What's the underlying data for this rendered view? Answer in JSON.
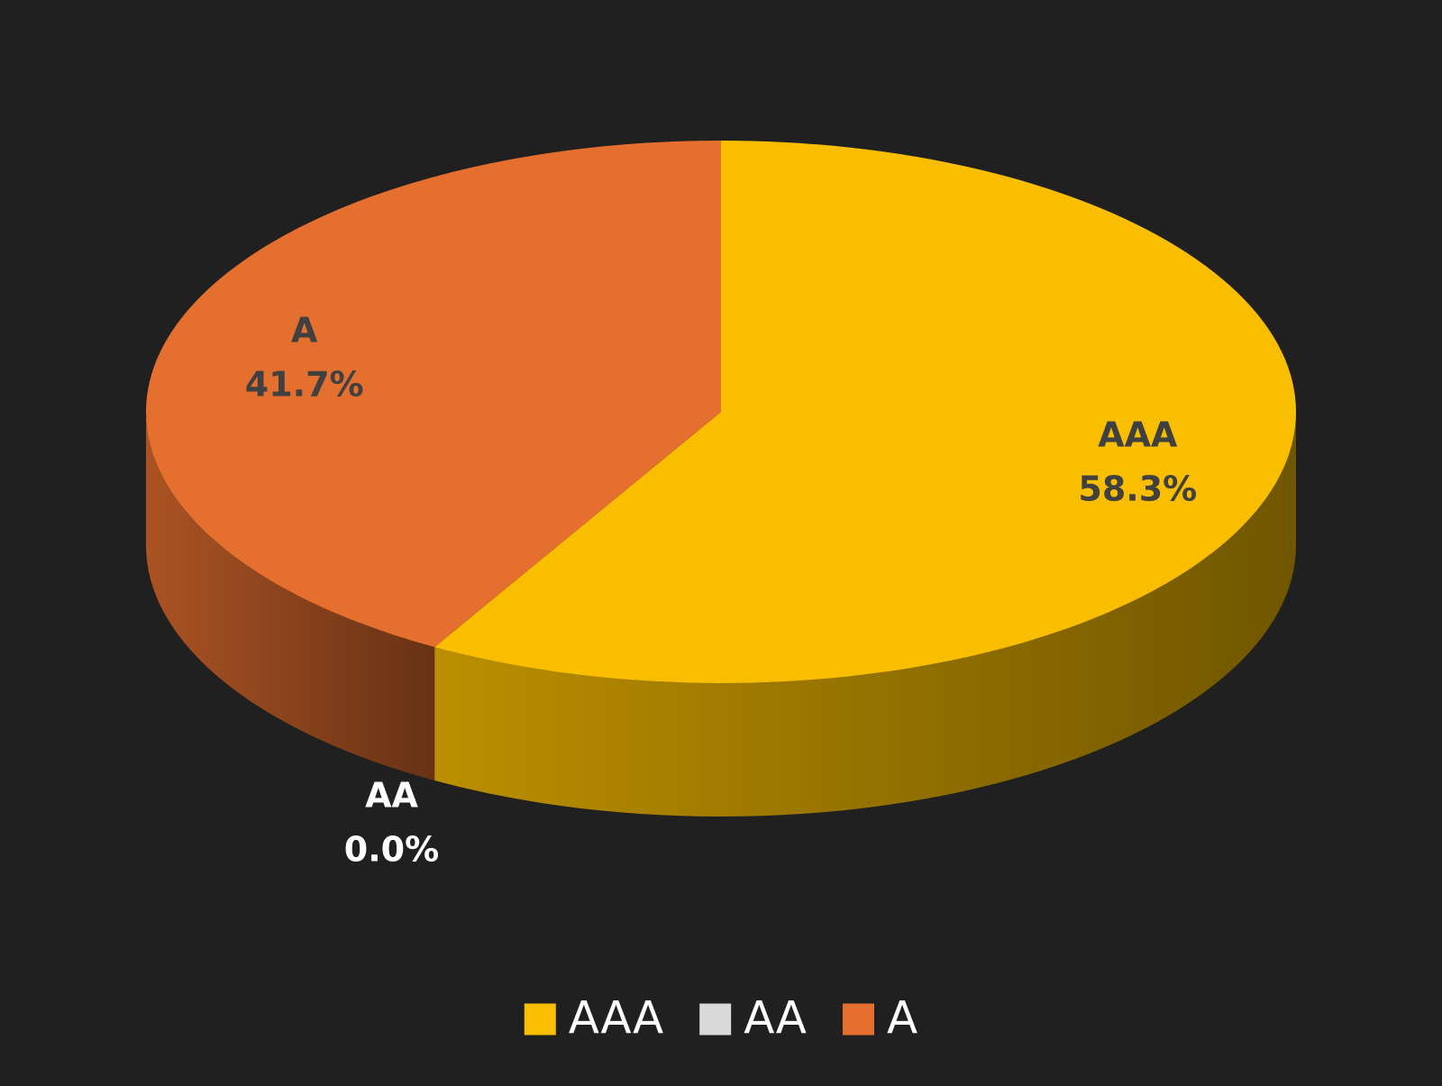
{
  "chart_data": {
    "type": "pie3d",
    "categories": [
      "AAA",
      "AA",
      "A"
    ],
    "values": [
      58.3,
      0.0,
      41.7
    ],
    "value_labels": [
      "58.3%",
      "0.0%",
      "41.7%"
    ],
    "colors": [
      "#f9be00",
      "#d9d9d9",
      "#e46f2e"
    ],
    "legend": "bottom"
  }
}
